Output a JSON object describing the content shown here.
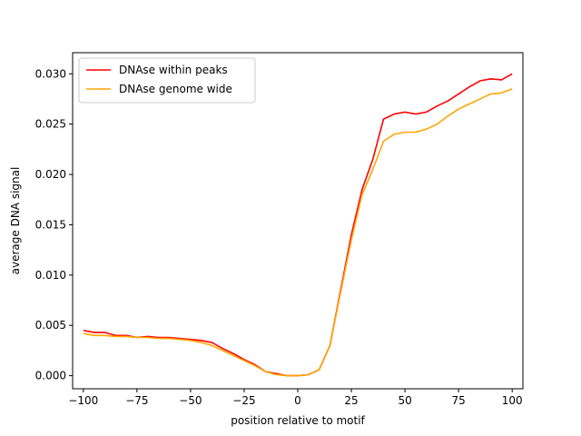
{
  "chart_data": {
    "type": "line",
    "title": "",
    "xlabel": "position relative to motif",
    "ylabel": "average DNA signal",
    "xlim": [
      -105,
      105
    ],
    "ylim": [
      -0.0013,
      0.0321
    ],
    "x_ticks": [
      -100,
      -75,
      -50,
      -25,
      0,
      25,
      50,
      75,
      100
    ],
    "x_tick_labels": [
      "−100",
      "−75",
      "−50",
      "−25",
      "0",
      "25",
      "50",
      "75",
      "100"
    ],
    "y_ticks": [
      0.0,
      0.005,
      0.01,
      0.015,
      0.02,
      0.025,
      0.03
    ],
    "y_tick_labels": [
      "0.000",
      "0.005",
      "0.010",
      "0.015",
      "0.020",
      "0.025",
      "0.030"
    ],
    "grid": false,
    "legend_position": "top-left",
    "x": [
      -100,
      -95,
      -90,
      -85,
      -80,
      -75,
      -70,
      -65,
      -60,
      -55,
      -50,
      -45,
      -40,
      -35,
      -30,
      -25,
      -20,
      -15,
      -10,
      -5,
      0,
      5,
      10,
      15,
      20,
      25,
      30,
      35,
      40,
      45,
      50,
      55,
      60,
      65,
      70,
      75,
      80,
      85,
      90,
      95,
      100
    ],
    "series": [
      {
        "name": "DNAse within peaks",
        "color": "#ff0000",
        "values": [
          0.0045,
          0.0043,
          0.0043,
          0.004,
          0.004,
          0.0038,
          0.0039,
          0.0038,
          0.0038,
          0.0037,
          0.0036,
          0.0035,
          0.0033,
          0.0027,
          0.0022,
          0.0016,
          0.0011,
          0.0004,
          0.0002,
          0.0,
          0.0,
          0.0001,
          0.0006,
          0.003,
          0.0085,
          0.014,
          0.0185,
          0.0215,
          0.0255,
          0.026,
          0.0262,
          0.026,
          0.0262,
          0.0268,
          0.0273,
          0.028,
          0.0287,
          0.0293,
          0.0295,
          0.0294,
          0.03
        ]
      },
      {
        "name": "DNAse genome wide",
        "color": "#ffa500",
        "values": [
          0.0042,
          0.004,
          0.004,
          0.0039,
          0.0039,
          0.0038,
          0.0038,
          0.0037,
          0.0037,
          0.0036,
          0.0035,
          0.0033,
          0.003,
          0.0025,
          0.002,
          0.0015,
          0.001,
          0.0004,
          0.0001,
          0.0,
          0.0,
          0.0001,
          0.0006,
          0.003,
          0.0083,
          0.0135,
          0.018,
          0.0205,
          0.0233,
          0.024,
          0.0242,
          0.0242,
          0.0245,
          0.025,
          0.0258,
          0.0265,
          0.027,
          0.0275,
          0.028,
          0.0281,
          0.0285
        ]
      }
    ]
  }
}
